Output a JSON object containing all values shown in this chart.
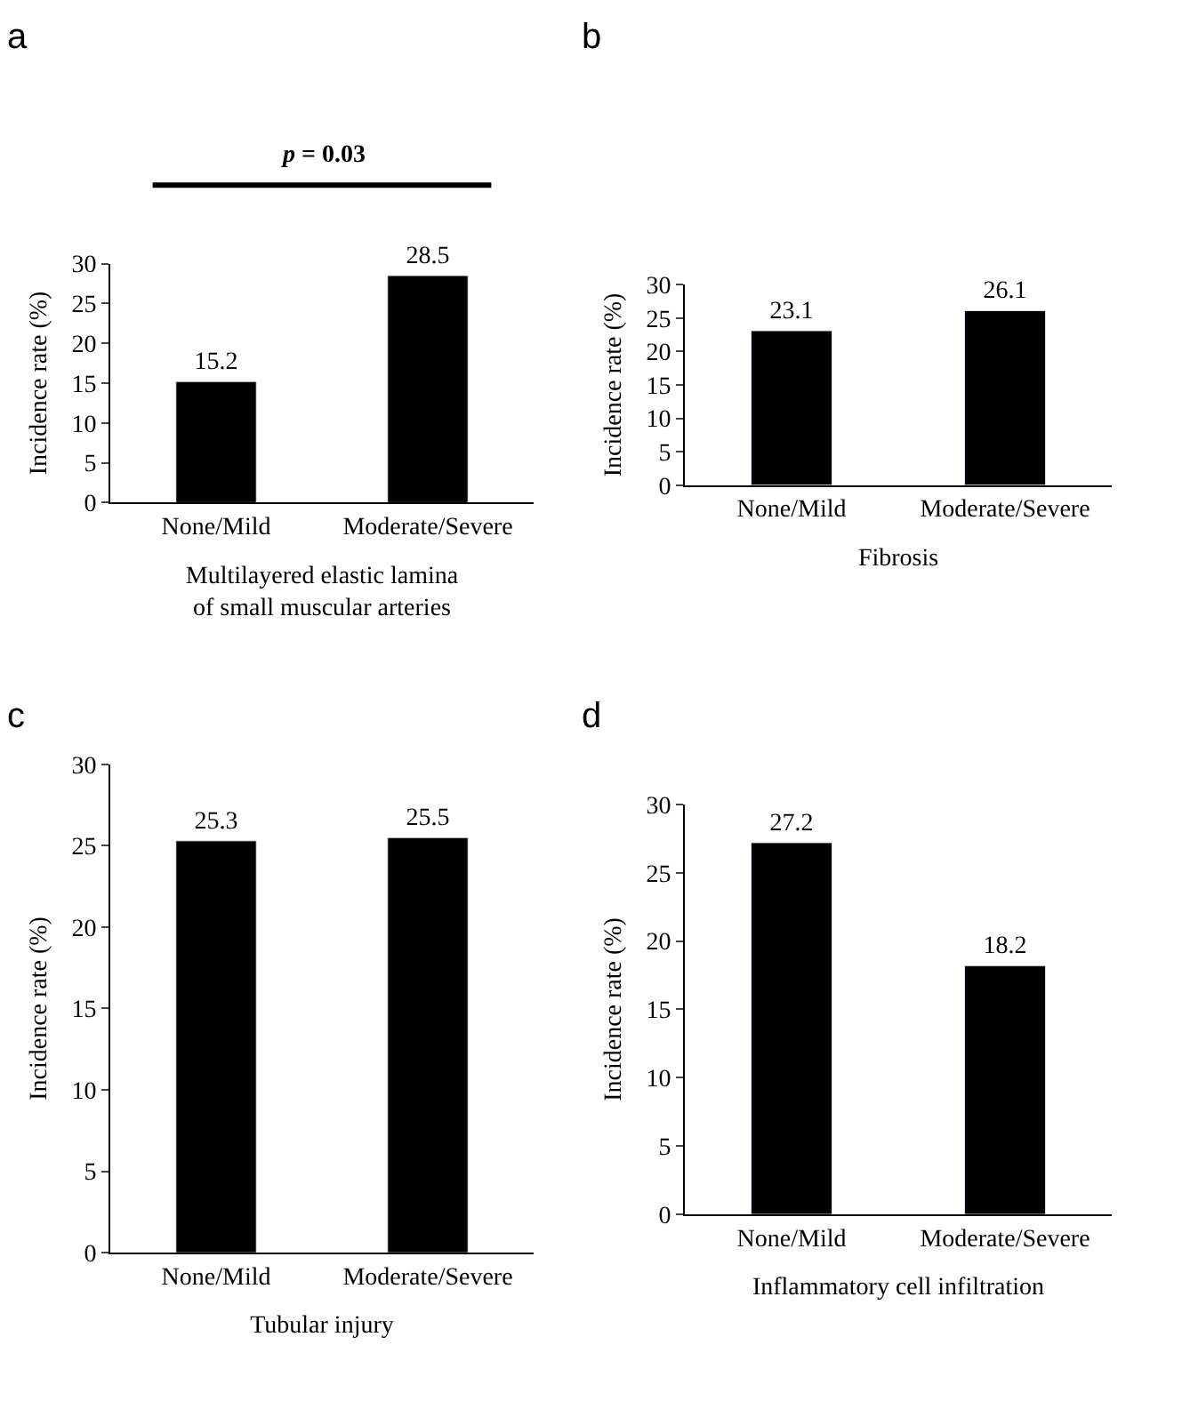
{
  "chart_data": [
    {
      "type": "bar",
      "title": "a",
      "categories": [
        "None/Mild",
        "Moderate/Severe"
      ],
      "values": [
        15.2,
        28.5
      ],
      "color": "#000000",
      "xlabel": "Multilayered elastic lamina\nof small muscular arteries",
      "ylabel": "Incidence rate (%)",
      "ylim": [
        0,
        30
      ],
      "yticks": [
        0,
        5,
        10,
        15,
        20,
        25,
        30
      ],
      "data_labels": true,
      "annotations": [
        "p = 0.03"
      ]
    },
    {
      "type": "bar",
      "title": "b",
      "categories": [
        "None/Mild",
        "Moderate/Severe"
      ],
      "values": [
        23.1,
        26.1
      ],
      "color": "#000000",
      "xlabel": "Fibrosis",
      "ylabel": "Incidence rate (%)",
      "ylim": [
        0,
        30
      ],
      "yticks": [
        0,
        5,
        10,
        15,
        20,
        25,
        30
      ],
      "data_labels": true
    },
    {
      "type": "bar",
      "title": "c",
      "categories": [
        "None/Mild",
        "Moderate/Severe"
      ],
      "values": [
        25.3,
        25.5
      ],
      "color": "#000000",
      "xlabel": "Tubular injury",
      "ylabel": "Incidence rate (%)",
      "ylim": [
        0,
        30
      ],
      "yticks": [
        0,
        5,
        10,
        15,
        20,
        25,
        30
      ],
      "data_labels": true
    },
    {
      "type": "bar",
      "title": "d",
      "categories": [
        "None/Mild",
        "Moderate/Severe"
      ],
      "values": [
        27.2,
        18.2
      ],
      "color": "#000000",
      "xlabel": "Inflammatory cell infiltration",
      "ylabel": "Incidence rate (%)",
      "ylim": [
        0,
        30
      ],
      "yticks": [
        0,
        5,
        10,
        15,
        20,
        25,
        30
      ],
      "data_labels": true
    }
  ]
}
